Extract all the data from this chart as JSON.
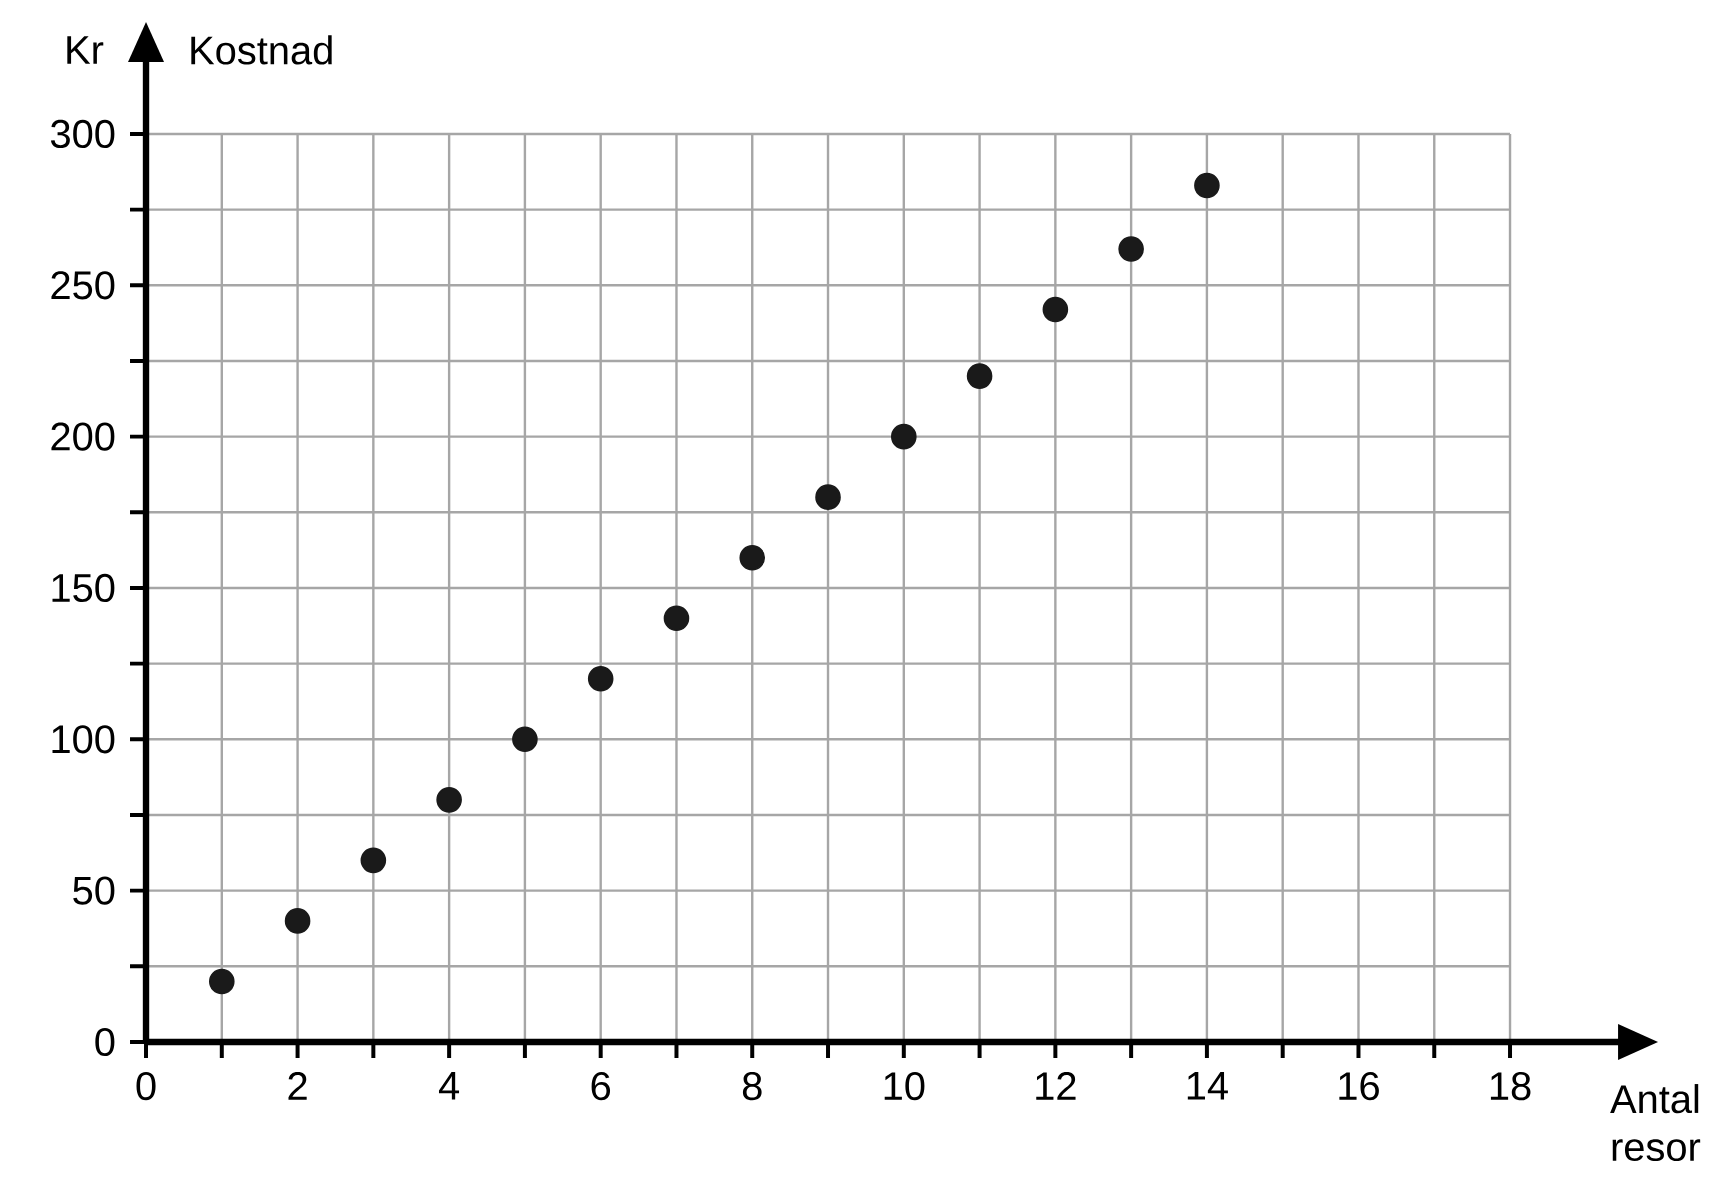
{
  "chart_data": {
    "type": "scatter",
    "xlabel": "Antal resor",
    "ylabel": "Kostnad",
    "annotations": [
      "Kr"
    ],
    "x": [
      1,
      2,
      3,
      4,
      5,
      6,
      7,
      8,
      9,
      10,
      11,
      12,
      13,
      14
    ],
    "values": [
      20,
      40,
      60,
      80,
      100,
      120,
      140,
      160,
      180,
      200,
      220,
      242,
      262,
      283
    ],
    "color": "#1a1a1a",
    "marker": "circle",
    "grid": true,
    "xlim": [
      0,
      18
    ],
    "ylim": [
      0,
      300
    ],
    "xticks": [
      0,
      {
        "value": 1,
        "label": null
      },
      2,
      {
        "value": 3,
        "label": null
      },
      4,
      {
        "value": 5,
        "label": null
      },
      6,
      {
        "value": 7,
        "label": null
      },
      8,
      {
        "value": 9,
        "label": null
      },
      10,
      {
        "value": 11,
        "label": null
      },
      12,
      {
        "value": 13,
        "label": null
      },
      14,
      {
        "value": 15,
        "label": null
      },
      16,
      {
        "value": 17,
        "label": null
      },
      18
    ],
    "yticks": [
      0,
      {
        "value": 25,
        "label": null
      },
      50,
      {
        "value": 75,
        "label": null
      },
      100,
      {
        "value": 125,
        "label": null
      },
      150,
      {
        "value": 175,
        "label": null
      },
      200,
      {
        "value": 225,
        "label": null
      },
      250,
      {
        "value": 275,
        "label": null
      },
      300
    ]
  }
}
